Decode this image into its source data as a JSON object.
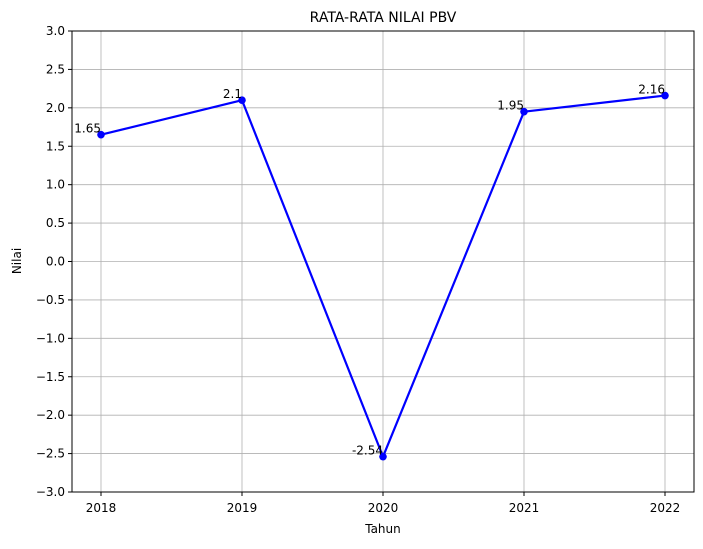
{
  "chart_data": {
    "type": "line",
    "title": "RATA-RATA NILAI PBV",
    "xlabel": "Tahun",
    "ylabel": "Nilai",
    "categories": [
      "2018",
      "2019",
      "2020",
      "2021",
      "2022"
    ],
    "series": [
      {
        "values": [
          1.65,
          2.1,
          -2.54,
          1.95,
          2.16
        ],
        "labels": [
          "1.65",
          "2.1",
          "-2.54",
          "1.95",
          "2.16"
        ],
        "color": "#0000ff",
        "marker": "circle"
      }
    ],
    "ylim": [
      -3.0,
      3.0
    ],
    "yticks": [
      -3.0,
      -2.5,
      -2.0,
      -1.5,
      -1.0,
      -0.5,
      0.0,
      0.5,
      1.0,
      1.5,
      2.0,
      2.5,
      3.0
    ],
    "ytick_labels": [
      "−3.0",
      "−2.5",
      "−2.0",
      "−1.5",
      "−1.0",
      "−0.5",
      "0.0",
      "0.5",
      "1.0",
      "1.5",
      "2.0",
      "2.5",
      "3.0"
    ],
    "grid": true,
    "legend": false
  }
}
